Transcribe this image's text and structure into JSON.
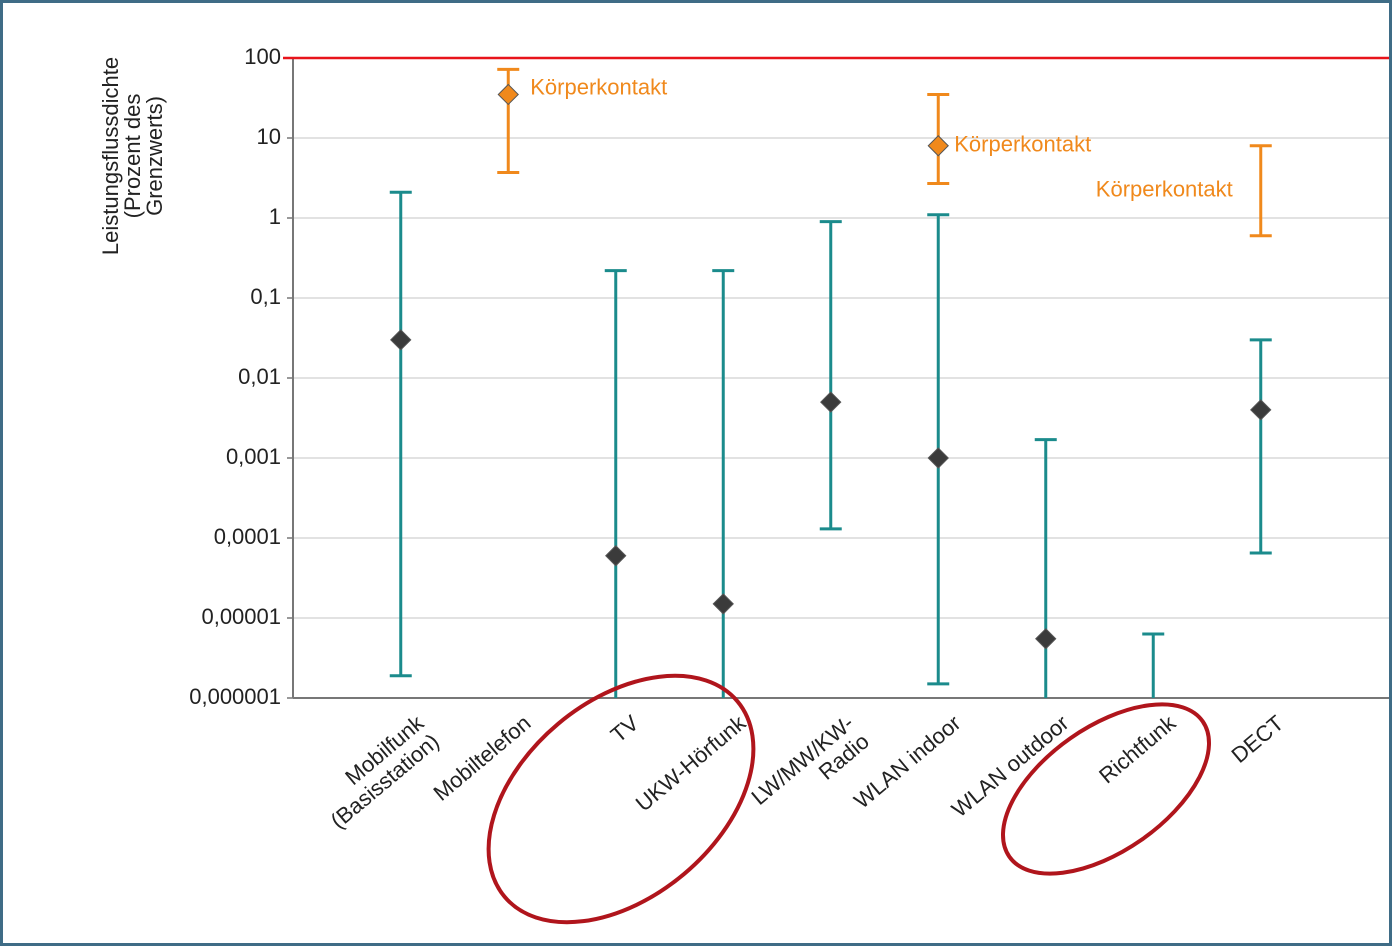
{
  "chart_data": {
    "type": "range",
    "y_label": "Leistungsflussdichte (Prozent des Grenzwerts)",
    "categories": [
      "Mobilfunk (Basisstation)",
      "Mobiltelefon",
      "TV",
      "UKW-Hörfunk",
      "LW/MW/KW-Radio",
      "WLAN indoor",
      "WLAN outdoor",
      "Richtfunk",
      "DECT"
    ],
    "log_scale": true,
    "grid": true,
    "ylim": [
      1e-06,
      100
    ],
    "yticks": [
      {
        "value": 1e-06,
        "label": "0,000001"
      },
      {
        "value": 1e-05,
        "label": "0,00001"
      },
      {
        "value": 0.0001,
        "label": "0,0001"
      },
      {
        "value": 0.001,
        "label": "0,001"
      },
      {
        "value": 0.01,
        "label": "0,01"
      },
      {
        "value": 0.1,
        "label": "0,1"
      },
      1,
      10,
      100
    ],
    "threshold": 100,
    "threshold_color": "#e8141b",
    "series": [
      {
        "color": "#1b8b8c",
        "marker_color": "#3b3b3b",
        "low": [
          1.9e-06,
          null,
          1e-06,
          1e-06,
          0.00013,
          1.5e-06,
          1e-06,
          1e-06,
          6.5e-05
        ],
        "high": [
          2.1,
          null,
          0.22,
          0.22,
          0.9,
          1.1,
          0.0017,
          6.3e-06,
          0.03
        ],
        "values": [
          0.03,
          null,
          6e-05,
          1.5e-05,
          0.005,
          0.001,
          5.5e-06,
          null,
          0.004
        ]
      },
      {
        "color": "#f0891c",
        "marker_color": "#f0891c",
        "low": [
          null,
          3.7,
          null,
          null,
          null,
          2.7,
          null,
          null,
          0.6
        ],
        "high": [
          null,
          72,
          null,
          null,
          null,
          35,
          null,
          null,
          8
        ],
        "values": [
          null,
          35,
          null,
          null,
          null,
          8,
          null,
          null,
          null
        ],
        "annotations": [
          null,
          "Körperkontakt",
          null,
          null,
          null,
          "Körperkontakt",
          null,
          null,
          "Körperkontakt"
        ]
      }
    ]
  }
}
